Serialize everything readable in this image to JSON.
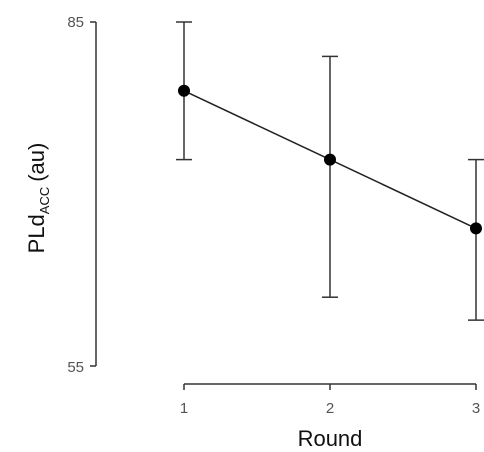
{
  "chart_data": {
    "type": "line",
    "title": "",
    "xlabel": "Round",
    "ylabel": {
      "main": "PLd",
      "subscript": "ACC",
      "unit": "(au)"
    },
    "x": [
      1,
      2,
      3
    ],
    "series": [
      {
        "values": [
          79,
          73,
          67
        ],
        "error_upper": [
          85,
          82,
          73
        ],
        "error_lower": [
          73,
          61,
          59
        ],
        "marker": "circle",
        "color": "#000000"
      }
    ],
    "xlim": [
      1,
      3
    ],
    "ylim": [
      55,
      85
    ],
    "x_ticks": [
      "1",
      "2",
      "3"
    ],
    "y_ticks": [
      "85",
      "55"
    ],
    "grid": false,
    "legend": "none"
  }
}
